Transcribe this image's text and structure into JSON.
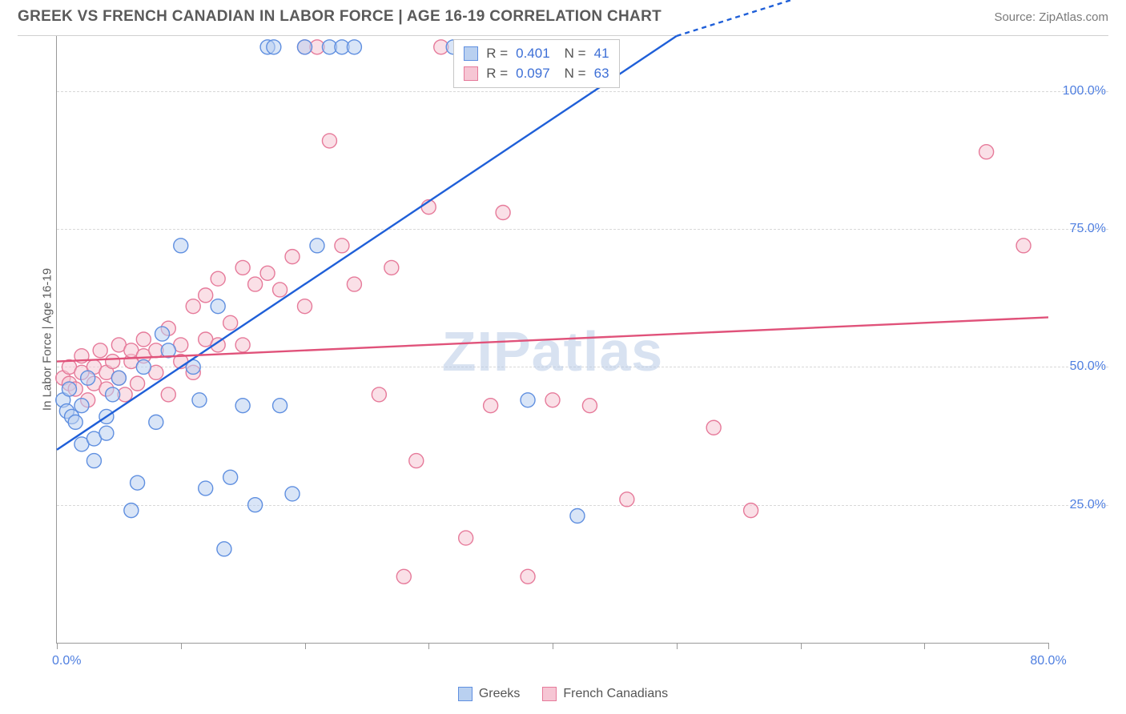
{
  "header": {
    "title": "GREEK VS FRENCH CANADIAN IN LABOR FORCE | AGE 16-19 CORRELATION CHART",
    "source": "Source: ZipAtlas.com"
  },
  "chart": {
    "type": "scatter",
    "ylabel": "In Labor Force | Age 16-19",
    "watermark": "ZIPatlas",
    "xlim": [
      0,
      80
    ],
    "ylim": [
      0,
      110
    ],
    "xtick_positions": [
      0,
      10,
      20,
      30,
      40,
      50,
      60,
      70,
      80
    ],
    "xtick_labels": {
      "0": "0.0%",
      "80": "80.0%"
    },
    "ytick_positions": [
      25,
      50,
      75,
      100
    ],
    "ytick_labels": {
      "25": "25.0%",
      "50": "50.0%",
      "75": "75.0%",
      "100": "100.0%"
    },
    "grid_color": "#d8d8d8",
    "axis_color": "#999999",
    "background_color": "#ffffff",
    "marker_radius": 9,
    "marker_stroke_width": 1.4,
    "trend_line_width": 2.4,
    "series": {
      "greeks": {
        "label": "Greeks",
        "fill": "#b9d0f0",
        "stroke": "#5f8fe0",
        "fill_opacity": 0.55,
        "trend_color": "#1f5fd8",
        "trend_y_at_xmin": 35,
        "trend_y_at_xmax": 155,
        "R": "0.401",
        "N": "41",
        "points": [
          [
            0.5,
            44
          ],
          [
            0.8,
            42
          ],
          [
            1,
            46
          ],
          [
            1.2,
            41
          ],
          [
            1.5,
            40
          ],
          [
            2,
            36
          ],
          [
            2,
            43
          ],
          [
            2.5,
            48
          ],
          [
            3,
            37
          ],
          [
            3,
            33
          ],
          [
            4,
            38
          ],
          [
            4,
            41
          ],
          [
            4.5,
            45
          ],
          [
            5,
            48
          ],
          [
            6,
            24
          ],
          [
            6.5,
            29
          ],
          [
            7,
            50
          ],
          [
            8,
            40
          ],
          [
            8.5,
            56
          ],
          [
            9,
            53
          ],
          [
            10,
            72
          ],
          [
            11,
            50
          ],
          [
            11.5,
            44
          ],
          [
            12,
            28
          ],
          [
            13,
            61
          ],
          [
            13.5,
            17
          ],
          [
            14,
            30
          ],
          [
            15,
            43
          ],
          [
            16,
            25
          ],
          [
            17,
            108
          ],
          [
            17.5,
            108
          ],
          [
            18,
            43
          ],
          [
            19,
            27
          ],
          [
            20,
            108
          ],
          [
            21,
            72
          ],
          [
            22,
            108
          ],
          [
            23,
            108
          ],
          [
            24,
            108
          ],
          [
            38,
            44
          ],
          [
            42,
            23
          ],
          [
            32,
            108
          ]
        ]
      },
      "french_canadians": {
        "label": "French Canadians",
        "fill": "#f6c6d4",
        "stroke": "#e67a9a",
        "fill_opacity": 0.55,
        "trend_color": "#e0527a",
        "trend_y_at_xmin": 51,
        "trend_y_at_xmax": 59,
        "R": "0.097",
        "N": "63",
        "points": [
          [
            0.5,
            48
          ],
          [
            1,
            47
          ],
          [
            1,
            50
          ],
          [
            1.5,
            46
          ],
          [
            2,
            49
          ],
          [
            2,
            52
          ],
          [
            2.5,
            44
          ],
          [
            3,
            47
          ],
          [
            3,
            50
          ],
          [
            3.5,
            53
          ],
          [
            4,
            46
          ],
          [
            4,
            49
          ],
          [
            4.5,
            51
          ],
          [
            5,
            48
          ],
          [
            5,
            54
          ],
          [
            5.5,
            45
          ],
          [
            6,
            51
          ],
          [
            6,
            53
          ],
          [
            6.5,
            47
          ],
          [
            7,
            52
          ],
          [
            7,
            55
          ],
          [
            8,
            49
          ],
          [
            8,
            53
          ],
          [
            9,
            45
          ],
          [
            9,
            57
          ],
          [
            10,
            51
          ],
          [
            10,
            54
          ],
          [
            11,
            49
          ],
          [
            11,
            61
          ],
          [
            12,
            55
          ],
          [
            12,
            63
          ],
          [
            13,
            54
          ],
          [
            13,
            66
          ],
          [
            14,
            58
          ],
          [
            15,
            68
          ],
          [
            15,
            54
          ],
          [
            16,
            65
          ],
          [
            17,
            67
          ],
          [
            18,
            64
          ],
          [
            19,
            70
          ],
          [
            20,
            61
          ],
          [
            20,
            108
          ],
          [
            21,
            108
          ],
          [
            22,
            91
          ],
          [
            23,
            72
          ],
          [
            24,
            65
          ],
          [
            26,
            45
          ],
          [
            27,
            68
          ],
          [
            28,
            12
          ],
          [
            29,
            33
          ],
          [
            30,
            79
          ],
          [
            31,
            108
          ],
          [
            33,
            19
          ],
          [
            35,
            43
          ],
          [
            36,
            78
          ],
          [
            38,
            12
          ],
          [
            40,
            44
          ],
          [
            43,
            43
          ],
          [
            46,
            26
          ],
          [
            53,
            39
          ],
          [
            56,
            24
          ],
          [
            75,
            89
          ],
          [
            78,
            72
          ]
        ]
      }
    },
    "stats_box": {
      "rows": [
        {
          "swatch_fill": "#b9d0f0",
          "swatch_stroke": "#5f8fe0",
          "r_label": "R =",
          "r_value": "0.401",
          "n_label": "N =",
          "n_value": "41"
        },
        {
          "swatch_fill": "#f6c6d4",
          "swatch_stroke": "#e67a9a",
          "r_label": "R =",
          "r_value": "0.097",
          "n_label": "N =",
          "n_value": "63"
        }
      ]
    },
    "legend": [
      {
        "swatch_fill": "#b9d0f0",
        "swatch_stroke": "#5f8fe0",
        "label": "Greeks"
      },
      {
        "swatch_fill": "#f6c6d4",
        "swatch_stroke": "#e67a9a",
        "label": "French Canadians"
      }
    ]
  },
  "typography": {
    "title_fontsize": 19,
    "label_fontsize": 15,
    "tick_fontsize": 16,
    "tick_color": "#4f7fe0"
  }
}
